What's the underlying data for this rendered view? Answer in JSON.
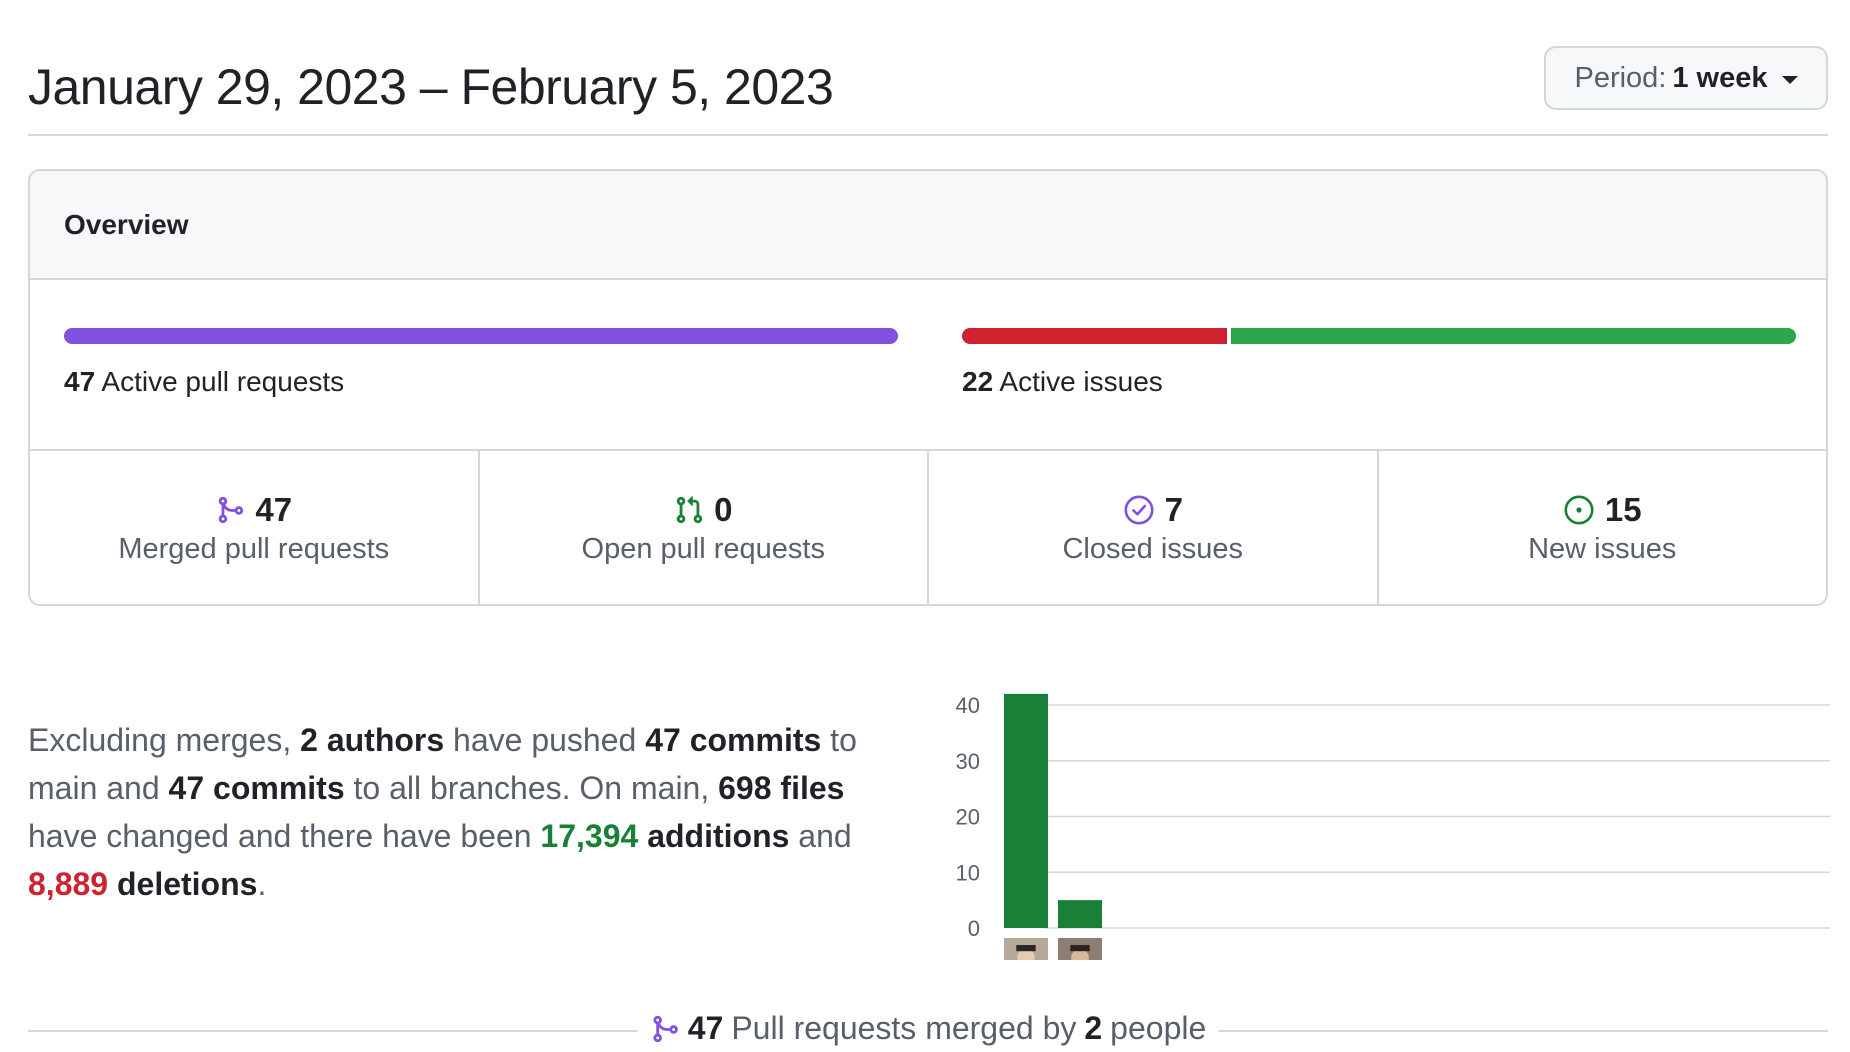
{
  "header": {
    "date_range": "January 29, 2023 – February 5, 2023",
    "period_prefix": "Period:",
    "period_value": "1 week"
  },
  "overview": {
    "title": "Overview",
    "active_prs": {
      "count": "47",
      "label": "Active pull requests"
    },
    "active_issues": {
      "count": "22",
      "label": "Active issues",
      "closed_fraction": 0.318
    },
    "stats": [
      {
        "icon": "git-merge-icon",
        "value": "47",
        "label": "Merged pull requests",
        "color": "#8250df"
      },
      {
        "icon": "git-pull-request-icon",
        "value": "0",
        "label": "Open pull requests",
        "color": "#1a7f37"
      },
      {
        "icon": "issue-closed-icon",
        "value": "7",
        "label": "Closed issues",
        "color": "#8250df"
      },
      {
        "icon": "issue-opened-icon",
        "value": "15",
        "label": "New issues",
        "color": "#1a7f37"
      }
    ]
  },
  "summary": {
    "p1": "Excluding merges,",
    "authors": "2 authors",
    "p2": "have pushed",
    "commits_main": "47 commits",
    "p3": "to main and",
    "commits_all": "47 commits",
    "p4": "to all branches. On main,",
    "files": "698 files",
    "p5": "have changed and there have been",
    "additions_num": "17,394",
    "additions_word": "additions",
    "p6": "and",
    "deletions_num": "8,889",
    "deletions_word": "deletions",
    "p7": "."
  },
  "chart_data": {
    "type": "bar",
    "categories": [
      "author-1",
      "author-2"
    ],
    "values": [
      42,
      5
    ],
    "ylim": [
      0,
      40
    ],
    "yticks": [
      0,
      10,
      20,
      30,
      40
    ],
    "bar_color": "#1a7f37",
    "grid": true
  },
  "footer": {
    "count": "47",
    "text_mid": "Pull requests merged by",
    "people": "2",
    "text_end": "people"
  },
  "colors": {
    "purple": "#8250df",
    "green": "#2da44e",
    "red": "#cf222e",
    "border": "#d0d7de"
  }
}
